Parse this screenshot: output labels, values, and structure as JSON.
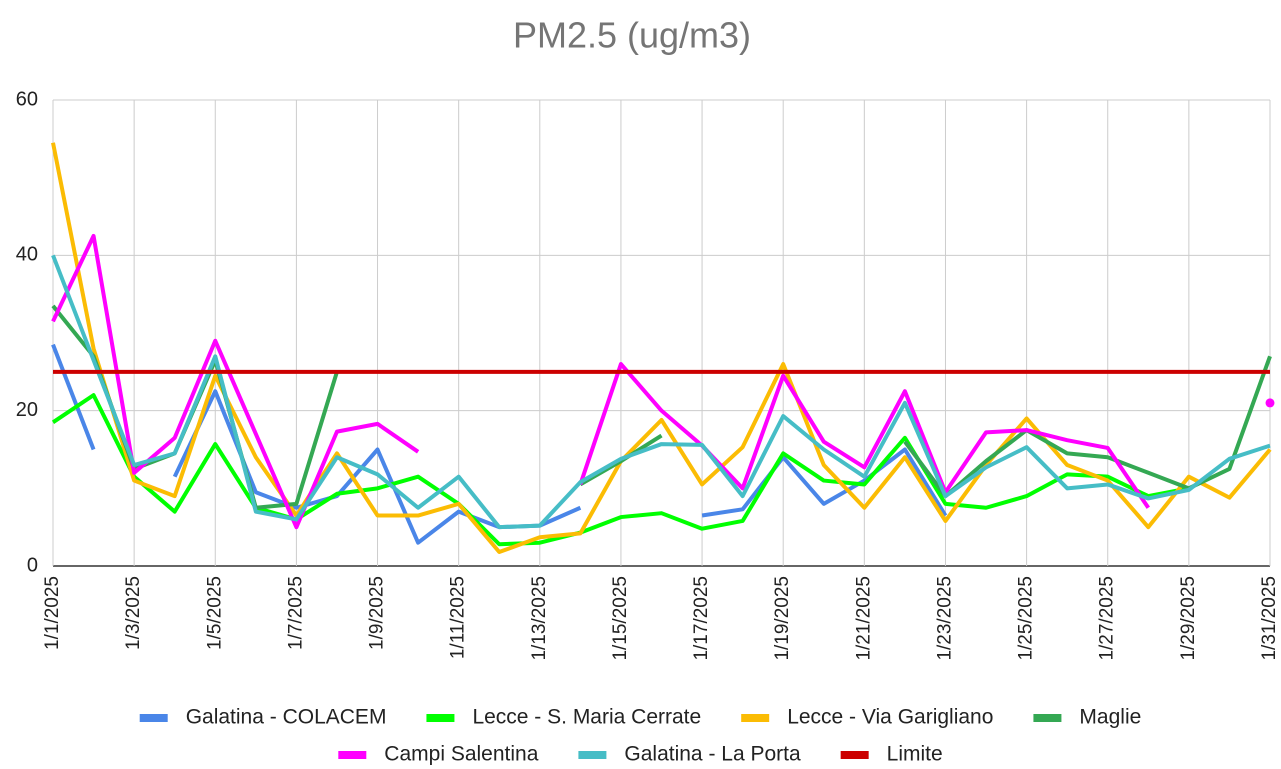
{
  "chart_data": {
    "type": "line",
    "title": "PM2.5 (ug/m3)",
    "categories": [
      "1/1/2025",
      null,
      "1/3/2025",
      null,
      "1/5/2025",
      null,
      "1/7/2025",
      null,
      "1/9/2025",
      null,
      "1/11/2025",
      null,
      "1/13/2025",
      null,
      "1/15/2025",
      null,
      "1/17/2025",
      null,
      "1/19/2025",
      null,
      "1/21/2025",
      null,
      "1/23/2025",
      null,
      "1/25/2025",
      null,
      "1/27/2025",
      null,
      "1/29/2025",
      null,
      "1/31/2025"
    ],
    "ylim": [
      0,
      60
    ],
    "yticks": [
      0,
      20,
      40,
      60
    ],
    "grid": true,
    "legend": "bottom",
    "series": [
      {
        "name": "Galatina - COLACEM",
        "color": "#4a86e8",
        "values": [
          28.5,
          15,
          null,
          11.5,
          22.5,
          9.5,
          7.5,
          9,
          15,
          3,
          7,
          5,
          5.2,
          7.5,
          null,
          null,
          6.5,
          7.3,
          14,
          8,
          11,
          15,
          6.5,
          null,
          null,
          null,
          null,
          null,
          null,
          null,
          null
        ]
      },
      {
        "name": "Lecce - S. Maria Cerrate",
        "color": "#00ff00",
        "values": [
          18.5,
          22,
          11.5,
          7,
          15.7,
          7.5,
          6,
          9.3,
          10,
          11.5,
          8,
          2.8,
          3,
          4.3,
          6.3,
          6.8,
          4.8,
          5.8,
          14.5,
          11,
          10.5,
          16.5,
          8,
          7.5,
          9,
          11.8,
          11.5,
          9,
          10,
          null,
          null
        ]
      },
      {
        "name": "Lecce - Via Garigliano",
        "color": "#fbbc04",
        "values": [
          54.5,
          28,
          11,
          9,
          24.5,
          14,
          6.5,
          14.5,
          6.5,
          6.5,
          8,
          1.8,
          3.7,
          4.2,
          13.5,
          18.8,
          10.5,
          15.3,
          26,
          13,
          7.5,
          14,
          5.8,
          13,
          19,
          13,
          11,
          5,
          11.5,
          8.8,
          15
        ]
      },
      {
        "name": "Maglie",
        "color": "#34a853",
        "values": [
          33.5,
          27,
          12.5,
          14.5,
          26.5,
          7.5,
          8,
          25,
          null,
          null,
          null,
          null,
          null,
          10.5,
          13.5,
          16.8,
          null,
          null,
          null,
          null,
          null,
          16,
          9,
          13.5,
          17.5,
          14.5,
          14,
          12,
          10,
          12.5,
          27
        ]
      },
      {
        "name": "Campi Salentina",
        "color": "#ff00ff",
        "values": [
          31.5,
          42.5,
          12,
          16.5,
          29,
          17,
          5,
          17.3,
          18.3,
          14.7,
          null,
          null,
          null,
          10.5,
          26,
          20,
          15.5,
          10,
          24.5,
          16,
          12.7,
          22.5,
          9.5,
          17.2,
          17.5,
          16.2,
          15.2,
          7.5,
          null,
          null,
          21
        ]
      },
      {
        "name": "Galatina - La Porta",
        "color": "#46bdc6",
        "values": [
          40,
          26.5,
          13,
          14.5,
          27,
          7,
          6,
          14,
          11.8,
          7.5,
          11.5,
          5,
          5.2,
          10.8,
          13.8,
          15.7,
          15.6,
          9,
          19.3,
          15,
          11.5,
          21,
          9,
          12.7,
          15.3,
          10,
          10.5,
          8.7,
          9.8,
          13.8,
          15.5
        ]
      },
      {
        "name": "Limite",
        "color": "#cc0000",
        "values": [
          25,
          25,
          25,
          25,
          25,
          25,
          25,
          25,
          25,
          25,
          25,
          25,
          25,
          25,
          25,
          25,
          25,
          25,
          25,
          25,
          25,
          25,
          25,
          25,
          25,
          25,
          25,
          25,
          25,
          25,
          25
        ]
      }
    ]
  }
}
